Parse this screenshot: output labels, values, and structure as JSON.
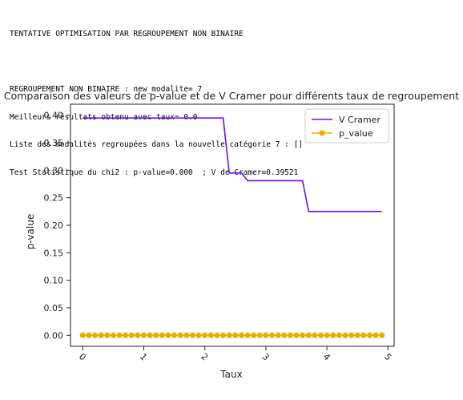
{
  "console": {
    "header": "TENTATIVE OPTIMISATION PAR REGROUPEMENT NON BINAIRE",
    "lines": [
      "REGROUPEMENT NON BINAIRE : new_modalite= 7",
      "Meilleurs résultats obtenu avec taux= 0.0",
      "Liste des modalités regroupées dans la nouvelle catégorie 7 : []",
      "Test Statistique du chi2 : p-value=0.000  ; V de Cramer=0.39521"
    ]
  },
  "chart_data": {
    "type": "line",
    "title": "Comparaison des valeurs de p-value et de V Cramer pour différents taux de regroupement",
    "xlabel": "Taux",
    "ylabel": "p-value",
    "xlim": [
      -0.2,
      5.1
    ],
    "ylim": [
      -0.02,
      0.42
    ],
    "xticks": [
      "0",
      "1",
      "2",
      "3",
      "4",
      "5"
    ],
    "yticks": [
      "0.00",
      "0.05",
      "0.10",
      "0.15",
      "0.20",
      "0.25",
      "0.30",
      "0.35",
      "0.40"
    ],
    "legend_position": "top-right",
    "grid": false,
    "series": [
      {
        "name": "V Cramer",
        "color": "#6a0dff",
        "marker": "none",
        "x": [
          0.0,
          0.1,
          0.2,
          0.3,
          0.4,
          0.5,
          0.6,
          0.7,
          0.8,
          0.9,
          1.0,
          1.1,
          1.2,
          1.3,
          1.4,
          1.5,
          1.6,
          1.7,
          1.8,
          1.9,
          2.0,
          2.1,
          2.2,
          2.3,
          2.4,
          2.5,
          2.6,
          2.7,
          2.8,
          2.9,
          3.0,
          3.1,
          3.2,
          3.3,
          3.4,
          3.5,
          3.6,
          3.7,
          3.8,
          3.9,
          4.0,
          4.1,
          4.2,
          4.3,
          4.4,
          4.5,
          4.6,
          4.7,
          4.8,
          4.9
        ],
        "y": [
          0.395,
          0.395,
          0.395,
          0.395,
          0.395,
          0.395,
          0.395,
          0.395,
          0.395,
          0.395,
          0.395,
          0.395,
          0.395,
          0.395,
          0.395,
          0.395,
          0.395,
          0.395,
          0.395,
          0.395,
          0.395,
          0.395,
          0.395,
          0.395,
          0.295,
          0.295,
          0.295,
          0.281,
          0.281,
          0.281,
          0.281,
          0.281,
          0.281,
          0.281,
          0.281,
          0.281,
          0.281,
          0.225,
          0.225,
          0.225,
          0.225,
          0.225,
          0.225,
          0.225,
          0.225,
          0.225,
          0.225,
          0.225,
          0.225,
          0.225
        ]
      },
      {
        "name": "p_value",
        "color": "#e6b000",
        "marker": "circle",
        "x": [
          0.0,
          0.1,
          0.2,
          0.3,
          0.4,
          0.5,
          0.6,
          0.7,
          0.8,
          0.9,
          1.0,
          1.1,
          1.2,
          1.3,
          1.4,
          1.5,
          1.6,
          1.7,
          1.8,
          1.9,
          2.0,
          2.1,
          2.2,
          2.3,
          2.4,
          2.5,
          2.6,
          2.7,
          2.8,
          2.9,
          3.0,
          3.1,
          3.2,
          3.3,
          3.4,
          3.5,
          3.6,
          3.7,
          3.8,
          3.9,
          4.0,
          4.1,
          4.2,
          4.3,
          4.4,
          4.5,
          4.6,
          4.7,
          4.8,
          4.9
        ],
        "y": [
          0.0,
          0.0,
          0.0,
          0.0,
          0.0,
          0.0,
          0.0,
          0.0,
          0.0,
          0.0,
          0.0,
          0.0,
          0.0,
          0.0,
          0.0,
          0.0,
          0.0,
          0.0,
          0.0,
          0.0,
          0.0,
          0.0,
          0.0,
          0.0,
          0.0,
          0.0,
          0.0,
          0.0,
          0.0,
          0.0,
          0.0,
          0.0,
          0.0,
          0.0,
          0.0,
          0.0,
          0.0,
          0.0,
          0.0,
          0.0,
          0.0,
          0.0,
          0.0,
          0.0,
          0.0,
          0.0,
          0.0,
          0.0,
          0.0,
          0.0
        ]
      }
    ]
  }
}
